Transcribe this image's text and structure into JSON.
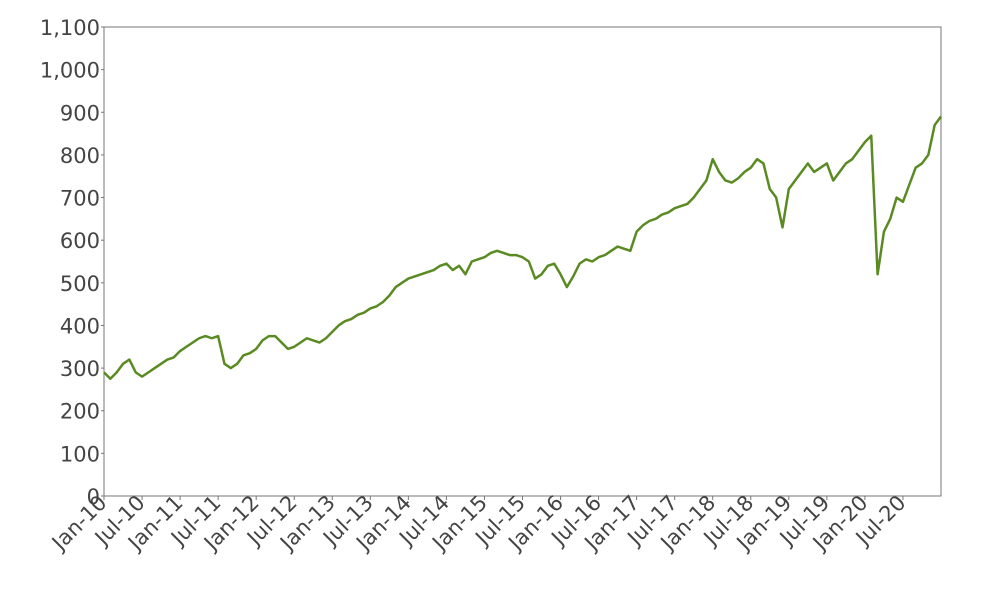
{
  "chart_data": {
    "type": "line",
    "x": [
      "2010-01",
      "2010-02",
      "2010-03",
      "2010-04",
      "2010-05",
      "2010-06",
      "2010-07",
      "2010-08",
      "2010-09",
      "2010-10",
      "2010-11",
      "2010-12",
      "2011-01",
      "2011-02",
      "2011-03",
      "2011-04",
      "2011-05",
      "2011-06",
      "2011-07",
      "2011-08",
      "2011-09",
      "2011-10",
      "2011-11",
      "2011-12",
      "2012-01",
      "2012-02",
      "2012-03",
      "2012-04",
      "2012-05",
      "2012-06",
      "2012-07",
      "2012-08",
      "2012-09",
      "2012-10",
      "2012-11",
      "2012-12",
      "2013-01",
      "2013-02",
      "2013-03",
      "2013-04",
      "2013-05",
      "2013-06",
      "2013-07",
      "2013-08",
      "2013-09",
      "2013-10",
      "2013-11",
      "2013-12",
      "2014-01",
      "2014-02",
      "2014-03",
      "2014-04",
      "2014-05",
      "2014-06",
      "2014-07",
      "2014-08",
      "2014-09",
      "2014-10",
      "2014-11",
      "2014-12",
      "2015-01",
      "2015-02",
      "2015-03",
      "2015-04",
      "2015-05",
      "2015-06",
      "2015-07",
      "2015-08",
      "2015-09",
      "2015-10",
      "2015-11",
      "2015-12",
      "2016-01",
      "2016-02",
      "2016-03",
      "2016-04",
      "2016-05",
      "2016-06",
      "2016-07",
      "2016-08",
      "2016-09",
      "2016-10",
      "2016-11",
      "2016-12",
      "2017-01",
      "2017-02",
      "2017-03",
      "2017-04",
      "2017-05",
      "2017-06",
      "2017-07",
      "2017-08",
      "2017-09",
      "2017-10",
      "2017-11",
      "2017-12",
      "2018-01",
      "2018-02",
      "2018-03",
      "2018-04",
      "2018-05",
      "2018-06",
      "2018-07",
      "2018-08",
      "2018-09",
      "2018-10",
      "2018-11",
      "2018-12",
      "2019-01",
      "2019-02",
      "2019-03",
      "2019-04",
      "2019-05",
      "2019-06",
      "2019-07",
      "2019-08",
      "2019-09",
      "2019-10",
      "2019-11",
      "2019-12",
      "2020-01",
      "2020-02",
      "2020-03",
      "2020-04",
      "2020-05",
      "2020-06",
      "2020-07",
      "2020-08",
      "2020-09",
      "2020-10",
      "2020-11",
      "2020-12",
      "2021-01"
    ],
    "series": [
      {
        "color": "#5a8a22",
        "values": [
          290,
          275,
          290,
          310,
          320,
          290,
          280,
          290,
          300,
          310,
          320,
          325,
          340,
          350,
          360,
          370,
          375,
          370,
          375,
          310,
          300,
          310,
          330,
          335,
          345,
          365,
          375,
          375,
          360,
          345,
          350,
          360,
          370,
          365,
          360,
          370,
          385,
          400,
          410,
          415,
          425,
          430,
          440,
          445,
          455,
          470,
          490,
          500,
          510,
          515,
          520,
          525,
          530,
          540,
          545,
          530,
          540,
          520,
          550,
          555,
          560,
          570,
          575,
          570,
          565,
          565,
          560,
          550,
          510,
          520,
          540,
          545,
          520,
          490,
          515,
          545,
          555,
          550,
          560,
          565,
          575,
          585,
          580,
          575,
          620,
          635,
          645,
          650,
          660,
          665,
          675,
          680,
          685,
          700,
          720,
          740,
          790,
          760,
          740,
          735,
          745,
          760,
          770,
          790,
          780,
          720,
          700,
          630,
          720,
          740,
          760,
          780,
          760,
          770,
          780,
          740,
          760,
          780,
          790,
          810,
          830,
          845,
          520,
          620,
          650,
          700,
          690,
          730,
          770,
          780,
          800,
          870,
          890
        ]
      }
    ],
    "xlim": [
      "2010-01",
      "2021-01"
    ],
    "xticks": [
      {
        "value": "2010-01",
        "label": "Jan-10"
      },
      {
        "value": "2010-07",
        "label": "Jul-10"
      },
      {
        "value": "2011-01",
        "label": "Jan-11"
      },
      {
        "value": "2011-07",
        "label": "Jul-11"
      },
      {
        "value": "2012-01",
        "label": "Jan-12"
      },
      {
        "value": "2012-07",
        "label": "Jul-12"
      },
      {
        "value": "2013-01",
        "label": "Jan-13"
      },
      {
        "value": "2013-07",
        "label": "Jul-13"
      },
      {
        "value": "2014-01",
        "label": "Jan-14"
      },
      {
        "value": "2014-07",
        "label": "Jul-14"
      },
      {
        "value": "2015-01",
        "label": "Jan-15"
      },
      {
        "value": "2015-07",
        "label": "Jul-15"
      },
      {
        "value": "2016-01",
        "label": "Jan-16"
      },
      {
        "value": "2016-07",
        "label": "Jul-16"
      },
      {
        "value": "2017-01",
        "label": "Jan-17"
      },
      {
        "value": "2017-07",
        "label": "Jul-17"
      },
      {
        "value": "2018-01",
        "label": "Jan-18"
      },
      {
        "value": "2018-07",
        "label": "Jul-18"
      },
      {
        "value": "2019-01",
        "label": "Jan-19"
      },
      {
        "value": "2019-07",
        "label": "Jul-19"
      },
      {
        "value": "2020-01",
        "label": "Jan-20"
      },
      {
        "value": "2020-07",
        "label": "Jul-20"
      }
    ],
    "ylim": [
      0,
      1100
    ],
    "yticks": [
      0,
      100,
      200,
      300,
      400,
      500,
      600,
      700,
      800,
      900,
      {
        "value": 1000,
        "label": "1,000"
      },
      {
        "value": 1100,
        "label": "1,100"
      }
    ],
    "grid": false
  }
}
